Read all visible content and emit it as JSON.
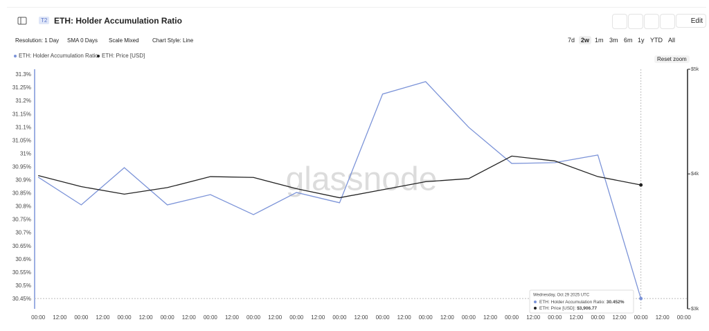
{
  "header": {
    "badge": "T2",
    "title": "ETH: Holder Accumulation Ratio",
    "edit": "Edit"
  },
  "toolbar": {
    "dropdowns": [
      "Resolution: 1 Day",
      "SMA 0 Days",
      "Scale Mixed",
      "Chart Style: Line"
    ],
    "ranges": [
      "7d",
      "2w",
      "1m",
      "3m",
      "6m",
      "1y",
      "YTD",
      "All"
    ],
    "active_range": 1,
    "reset": "Reset zoom"
  },
  "chart_data": {
    "type": "line",
    "watermark": "glassnode",
    "x": [
      0,
      24,
      48,
      72,
      96,
      120,
      144,
      168,
      192,
      216,
      240,
      264,
      288,
      312,
      336
    ],
    "xlim": [
      -2,
      362
    ],
    "xticks": [
      {
        "value": 0,
        "label": "00:00"
      },
      {
        "value": 12,
        "label": "12:00"
      },
      {
        "value": 24,
        "label": "00:00"
      },
      {
        "value": 36,
        "label": "12:00"
      },
      {
        "value": 48,
        "label": "00:00"
      },
      {
        "value": 60,
        "label": "12:00"
      },
      {
        "value": 72,
        "label": "00:00"
      },
      {
        "value": 84,
        "label": "12:00"
      },
      {
        "value": 96,
        "label": "00:00"
      },
      {
        "value": 108,
        "label": "12:00"
      },
      {
        "value": 120,
        "label": "00:00"
      },
      {
        "value": 132,
        "label": "12:00"
      },
      {
        "value": 144,
        "label": "00:00"
      },
      {
        "value": 156,
        "label": "12:00"
      },
      {
        "value": 168,
        "label": "00:00"
      },
      {
        "value": 180,
        "label": "12:00"
      },
      {
        "value": 192,
        "label": "00:00"
      },
      {
        "value": 204,
        "label": "12:00"
      },
      {
        "value": 216,
        "label": "00:00"
      },
      {
        "value": 228,
        "label": "12:00"
      },
      {
        "value": 240,
        "label": "00:00"
      },
      {
        "value": 252,
        "label": "12:00"
      },
      {
        "value": 264,
        "label": "00:00"
      },
      {
        "value": 276,
        "label": "12:00"
      },
      {
        "value": 288,
        "label": "00:00"
      },
      {
        "value": 300,
        "label": "12:00"
      },
      {
        "value": 312,
        "label": "00:00"
      },
      {
        "value": 324,
        "label": "12:00"
      },
      {
        "value": 336,
        "label": "00:00"
      },
      {
        "value": 348,
        "label": "12:00"
      },
      {
        "value": 360,
        "label": "00:00"
      }
    ],
    "ylim": [
      30.413,
      31.321
    ],
    "yticks": [
      {
        "value": 30.45,
        "label": "30.45%"
      },
      {
        "value": 30.5,
        "label": "30.5%"
      },
      {
        "value": 30.55,
        "label": "30.55%"
      },
      {
        "value": 30.6,
        "label": "30.6%"
      },
      {
        "value": 30.65,
        "label": "30.65%"
      },
      {
        "value": 30.7,
        "label": "30.7%"
      },
      {
        "value": 30.75,
        "label": "30.75%"
      },
      {
        "value": 30.8,
        "label": "30.8%"
      },
      {
        "value": 30.85,
        "label": "30.85%"
      },
      {
        "value": 30.9,
        "label": "30.9%"
      },
      {
        "value": 30.95,
        "label": "30.95%"
      },
      {
        "value": 31,
        "label": "31%"
      },
      {
        "value": 31.05,
        "label": "31.05%"
      },
      {
        "value": 31.1,
        "label": "31.1%"
      },
      {
        "value": 31.15,
        "label": "31.15%"
      },
      {
        "value": 31.2,
        "label": "31.2%"
      },
      {
        "value": 31.25,
        "label": "31.25%"
      },
      {
        "value": 31.3,
        "label": "31.3%"
      }
    ],
    "y2lim": [
      3000,
      5000
    ],
    "y2log": true,
    "y2ticks": [
      {
        "value": 3000,
        "label": "$3k"
      },
      {
        "value": 4000,
        "label": "$4k"
      },
      {
        "value": 5000,
        "label": "$5k"
      }
    ],
    "series": [
      {
        "name": "ETH: Holder Accumulation Ratio",
        "color": "#7b93d8",
        "values": [
          30.912,
          30.807,
          30.948,
          30.807,
          30.846,
          30.77,
          30.854,
          30.815,
          31.227,
          31.274,
          31.101,
          30.964,
          30.967,
          30.996,
          30.452
        ]
      },
      {
        "name": "ETH: Price [USD]",
        "color": "#222222",
        "axis": "y2",
        "values": [
          3986,
          3893,
          3831,
          3885,
          3977,
          3970,
          3876,
          3802,
          3867,
          3934,
          3960,
          4155,
          4112,
          3977,
          3906.77
        ]
      }
    ],
    "tooltip": {
      "date": "Wednesday, Oct 29 2025 UTC",
      "lines": [
        "ETH: Holder Accumulation Ratio: ",
        "ETH: Price [USD]: "
      ],
      "values": [
        "30.452%",
        "$3,906.77"
      ]
    }
  }
}
